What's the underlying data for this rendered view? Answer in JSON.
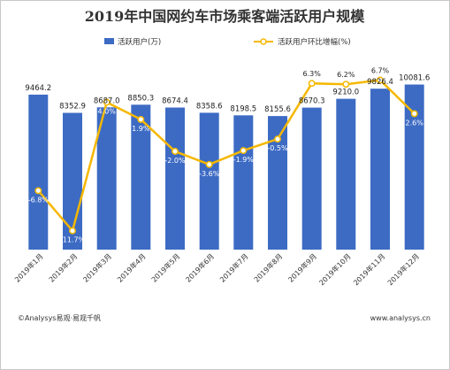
{
  "chart_data": {
    "type": "bar",
    "title": "2019年中国网约车市场乘客端活跃用户规模",
    "categories": [
      "2019年1月",
      "2019年2月",
      "2019年3月",
      "2019年4月",
      "2019年5月",
      "2019年6月",
      "2019年7月",
      "2019年8月",
      "2019年9月",
      "2019年10月",
      "2019年11月",
      "2019年12月"
    ],
    "series": [
      {
        "name": "活跃用户(万)",
        "type": "bar",
        "axis": "left",
        "values": [
          9464.2,
          8352.9,
          8687.0,
          8850.3,
          8674.4,
          8358.6,
          8198.5,
          8155.6,
          8670.3,
          9210.0,
          9826.4,
          10081.6
        ],
        "labels": [
          "9464.2",
          "8352.9",
          "8687.0",
          "8850.3",
          "8674.4",
          "8358.6",
          "8198.5",
          "8155.6",
          "8670.3",
          "9210.0",
          "9826.4",
          "10081.6"
        ],
        "color": "#3d6bc4"
      },
      {
        "name": "活跃用户环比增幅(%)",
        "type": "line",
        "axis": "right",
        "values": [
          -6.8,
          -11.7,
          4.0,
          1.9,
          -2.0,
          -3.6,
          -1.9,
          -0.5,
          6.3,
          6.2,
          6.7,
          2.6
        ],
        "labels": [
          "-6.8%",
          "-11.7%",
          "4.0%",
          "1.9%",
          "-2.0%",
          "-3.6%",
          "-1.9%",
          "-0.5%",
          "6.3%",
          "6.2%",
          "6.7%",
          "2.6%"
        ],
        "color": "#f5b800"
      }
    ],
    "ylim_left": [
      0,
      12000
    ],
    "ylim_right": [
      -14,
      10
    ],
    "legend_position": "top",
    "grid": false
  },
  "footer": {
    "source": "©Analysys易观·易观千帆",
    "website": "www.analysys.cn"
  },
  "colors": {
    "bar": "#3d6bc4",
    "line": "#f5b800",
    "marker_fill": "#ffffff"
  }
}
